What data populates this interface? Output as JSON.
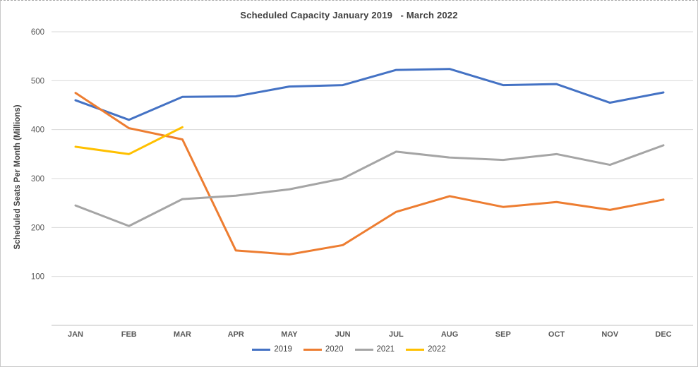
{
  "chart_data": {
    "type": "line",
    "title": "Scheduled Capacity January 2019   - March 2022",
    "ylabel": "Scheduled Seats Per Month (Millions)",
    "xlabel": "",
    "categories": [
      "JAN",
      "FEB",
      "MAR",
      "APR",
      "MAY",
      "JUN",
      "JUL",
      "AUG",
      "SEP",
      "OCT",
      "NOV",
      "DEC"
    ],
    "series": [
      {
        "name": "2019",
        "color": "#4472C4",
        "values": [
          460,
          420,
          467,
          468,
          488,
          491,
          522,
          524,
          491,
          493,
          455,
          476
        ]
      },
      {
        "name": "2020",
        "color": "#ED7D31",
        "values": [
          475,
          403,
          380,
          153,
          145,
          164,
          232,
          264,
          242,
          252,
          236,
          257
        ]
      },
      {
        "name": "2021",
        "color": "#A5A5A5",
        "values": [
          245,
          203,
          258,
          265,
          278,
          300,
          355,
          343,
          338,
          350,
          328,
          368
        ]
      },
      {
        "name": "2022",
        "color": "#FFC000",
        "values": [
          365,
          350,
          405,
          null,
          null,
          null,
          null,
          null,
          null,
          null,
          null,
          null
        ]
      }
    ],
    "ylim": [
      0,
      600
    ],
    "yticks": [
      100,
      200,
      300,
      400,
      500,
      600
    ],
    "grid": true,
    "legend_position": "bottom",
    "gridline_color": "#D9D9D9",
    "axis_line_color": "#BFBFBF",
    "tick_label_color": "#595959"
  }
}
